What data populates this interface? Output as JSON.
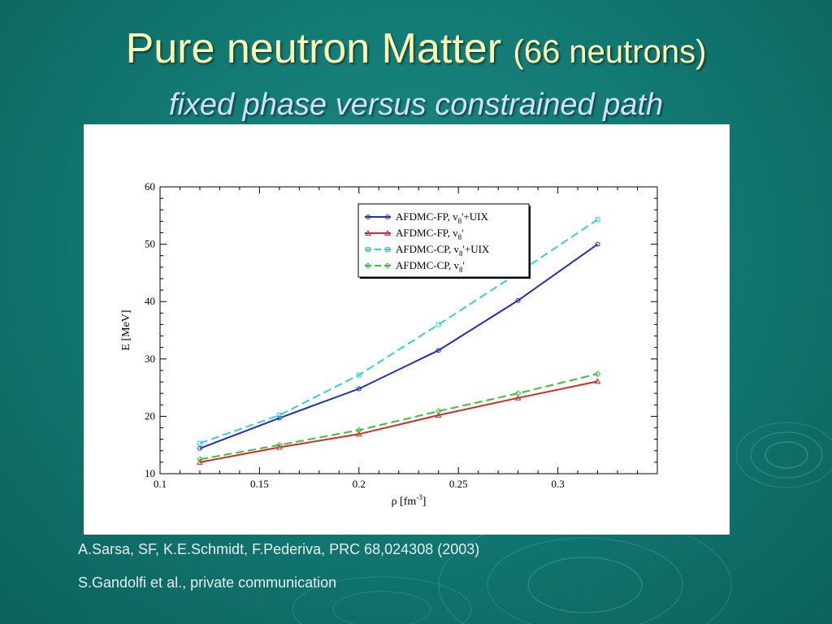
{
  "slide": {
    "title_main": "Pure neutron Matter",
    "title_paren": "(66 neutrons)",
    "subtitle": "fixed phase versus constrained path",
    "credits": [
      "A.Sarsa, SF, K.E.Schmidt, F.Pederiva, PRC 68,024308 (2003)",
      "S.Gandolfi et al., private communication"
    ]
  },
  "chart_data": {
    "type": "line",
    "xlabel": "ρ [fm",
    "xlabel_sup": "-3",
    "xlabel_end": "]",
    "ylabel": "E [MeV]",
    "xlim": [
      0.1,
      0.35
    ],
    "ylim": [
      10,
      60
    ],
    "x_ticks": [
      "0.1",
      "0.15",
      "0.2",
      "0.25",
      "0.3"
    ],
    "y_ticks": [
      "10",
      "20",
      "30",
      "40",
      "50",
      "60"
    ],
    "grid": false,
    "legend_position": "top-right",
    "series": [
      {
        "name": "AFDMC-FP, v8'+UIX",
        "legend_base": "AFDMC-FP, v",
        "legend_sub": "8",
        "legend_tail": "'+UIX",
        "color": "#1f2fb8",
        "dash": "solid",
        "marker": "circle",
        "x": [
          0.12,
          0.16,
          0.2,
          0.24,
          0.28,
          0.32
        ],
        "y": [
          14.4,
          19.7,
          24.8,
          31.5,
          40.2,
          50.0
        ]
      },
      {
        "name": "AFDMC-FP, v8'",
        "legend_base": "AFDMC-FP, v",
        "legend_sub": "8",
        "legend_tail": "'",
        "color": "#d42a2a",
        "dash": "solid",
        "marker": "triangle",
        "x": [
          0.12,
          0.16,
          0.2,
          0.24,
          0.28,
          0.32
        ],
        "y": [
          12.0,
          14.6,
          16.9,
          20.2,
          23.2,
          26.1
        ]
      },
      {
        "name": "AFDMC-CP, v8'+UIX",
        "legend_base": "AFDMC-CP, v",
        "legend_sub": "8",
        "legend_tail": "'+UIX",
        "color": "#33d0e0",
        "dash": "dashed",
        "marker": "square",
        "x": [
          0.12,
          0.16,
          0.2,
          0.24,
          0.28,
          0.32
        ],
        "y": [
          15.3,
          20.2,
          27.2,
          36.0,
          45.0,
          54.3
        ]
      },
      {
        "name": "AFDMC-CP, v8'",
        "legend_base": "AFDMC-CP, v",
        "legend_sub": "8",
        "legend_tail": "'",
        "color": "#3cc23c",
        "dash": "dashed",
        "marker": "diamond",
        "x": [
          0.12,
          0.16,
          0.2,
          0.24,
          0.28,
          0.32
        ],
        "y": [
          12.5,
          15.0,
          17.6,
          20.9,
          24.0,
          27.4
        ]
      }
    ]
  }
}
